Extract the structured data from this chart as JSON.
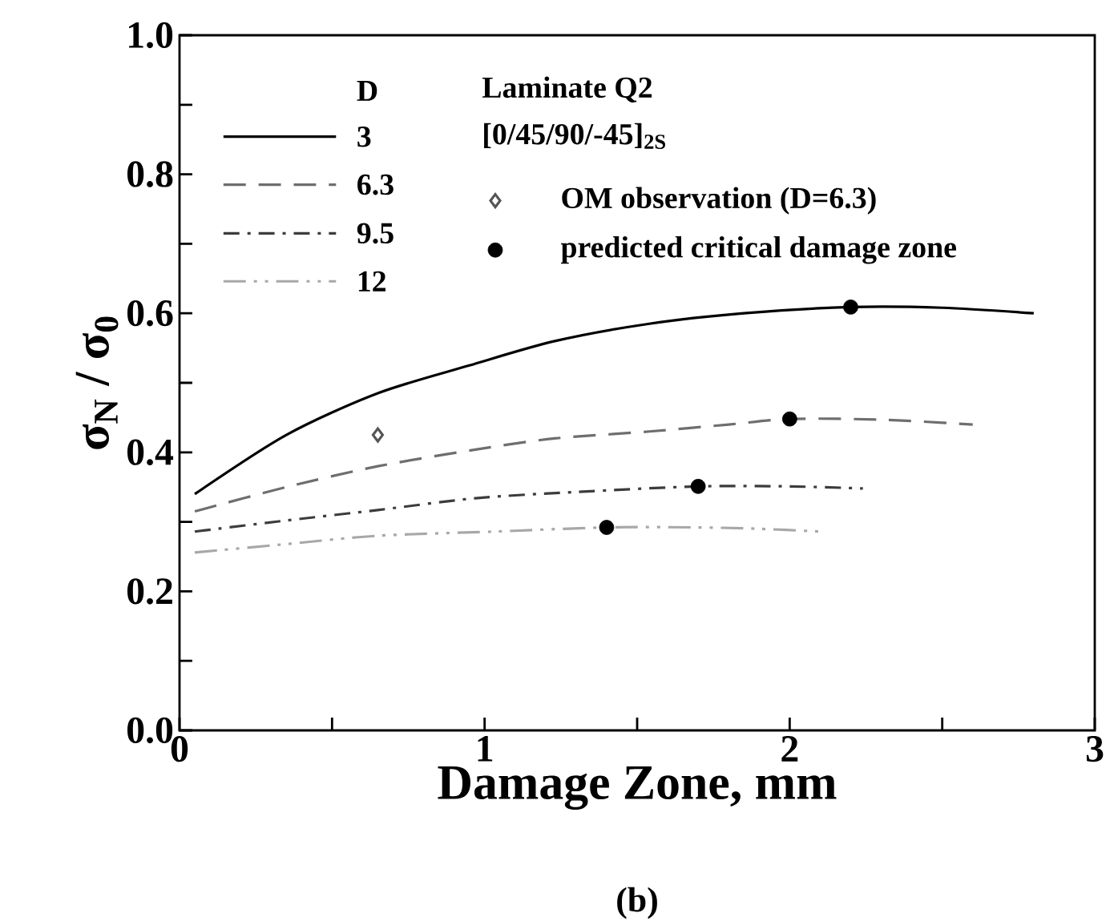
{
  "chart_data": {
    "type": "line",
    "xlabel": "Damage Zone, mm",
    "ylabel": "σ$_{N}$ / σ$_{0}$",
    "legend_title": "D",
    "annotations": [
      "Laminate Q2",
      "[0/45/90/-45]$_{2S}$",
      "(b)"
    ],
    "xlim": [
      0,
      3
    ],
    "ylim": [
      0,
      1
    ],
    "xticks": [
      0,
      {
        "value": 0.5,
        "label": null
      },
      1,
      {
        "value": 1.5,
        "label": null
      },
      2,
      {
        "value": 2.5,
        "label": null
      },
      3
    ],
    "yticks": [
      {
        "value": 0,
        "label": "0.0"
      },
      {
        "value": 0.1,
        "label": null
      },
      {
        "value": 0.2,
        "label": "0.2"
      },
      {
        "value": 0.3,
        "label": null
      },
      {
        "value": 0.4,
        "label": "0.4"
      },
      {
        "value": 0.5,
        "label": null
      },
      {
        "value": 0.6,
        "label": "0.6"
      },
      {
        "value": 0.7,
        "label": null
      },
      {
        "value": 0.8,
        "label": "0.8"
      },
      {
        "value": 0.9,
        "label": null
      },
      {
        "value": 1,
        "label": "1.0"
      }
    ],
    "grid": false,
    "legend": "top left",
    "marker": "none",
    "series": [
      {
        "name": "3",
        "color": "#000000",
        "line_style": "solid",
        "x": [
          0.05,
          0.35,
          0.65,
          0.95,
          1.23,
          1.54,
          1.85,
          2.2,
          2.5,
          2.8
        ],
        "values": [
          0.34,
          0.425,
          0.485,
          0.525,
          0.56,
          0.585,
          0.6,
          0.609,
          0.608,
          0.6
        ]
      },
      {
        "name": "6.3",
        "color": "#6e6e6e",
        "line_style": "dashed",
        "x": [
          0.05,
          0.35,
          0.65,
          0.97,
          1.23,
          1.54,
          1.8,
          2.0,
          2.3,
          2.6
        ],
        "values": [
          0.315,
          0.35,
          0.38,
          0.404,
          0.42,
          0.43,
          0.44,
          0.448,
          0.447,
          0.44
        ]
      },
      {
        "name": "9.5",
        "color": "#3c3c3c",
        "line_style": "dashdot",
        "x": [
          0.05,
          0.35,
          0.65,
          0.97,
          1.3,
          1.7,
          2.0,
          2.24
        ],
        "values": [
          0.286,
          0.302,
          0.317,
          0.334,
          0.343,
          0.351,
          0.351,
          0.348
        ]
      },
      {
        "name": "12",
        "color": "#a8a8a8",
        "line_style": "dashdotdot",
        "x": [
          0.05,
          0.35,
          0.65,
          1.03,
          1.4,
          1.69,
          1.9,
          2.1
        ],
        "values": [
          0.256,
          0.268,
          0.28,
          0.286,
          0.292,
          0.292,
          0.29,
          0.286
        ]
      },
      {
        "name": "OM observation (D=6.3)",
        "type": "scatter",
        "color": "#555555",
        "marker": "diamond",
        "x": [
          0.65
        ],
        "values": [
          0.425
        ]
      },
      {
        "name": "predicted critical damage zone",
        "type": "scatter",
        "color": "#000000",
        "marker": "circle",
        "x": [
          1.4,
          1.7,
          2.0,
          2.2
        ],
        "values": [
          0.292,
          0.351,
          0.448,
          0.609
        ]
      }
    ]
  }
}
